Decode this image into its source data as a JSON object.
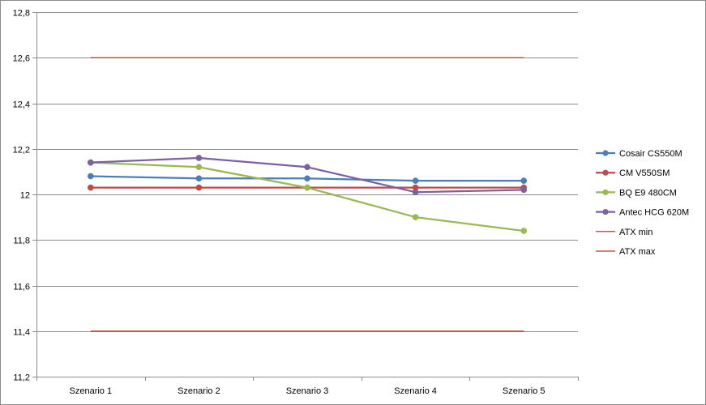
{
  "chart_data": {
    "type": "line",
    "title": "",
    "xlabel": "",
    "ylabel": "",
    "categories": [
      "Szenario 1",
      "Szenario 2",
      "Szenario 3",
      "Szenario 4",
      "Szenario 5"
    ],
    "ylim": [
      11.2,
      12.8
    ],
    "yticks": [
      "11,2",
      "11,4",
      "11,6",
      "11,8",
      "12",
      "12,2",
      "12,4",
      "12,6",
      "12,8"
    ],
    "ytick_values": [
      11.2,
      11.4,
      11.6,
      11.8,
      12.0,
      12.2,
      12.4,
      12.6,
      12.8
    ],
    "grid": true,
    "legend_position": "right",
    "series": [
      {
        "name": "Cosair CS550M",
        "color": "#4a7ebb",
        "marker": true,
        "values": [
          12.08,
          12.07,
          12.07,
          12.06,
          12.06
        ]
      },
      {
        "name": "CM V550SM",
        "color": "#be4b48",
        "marker": true,
        "values": [
          12.03,
          12.03,
          12.03,
          12.03,
          12.03
        ]
      },
      {
        "name": "BQ E9 480CM",
        "color": "#98b954",
        "marker": true,
        "values": [
          12.14,
          12.12,
          12.03,
          11.9,
          11.84
        ]
      },
      {
        "name": "Antec HCG 620M",
        "color": "#7d60a0",
        "marker": true,
        "values": [
          12.14,
          12.16,
          12.12,
          12.01,
          12.02
        ]
      },
      {
        "name": "ATX min",
        "color": "#c0392b",
        "marker": false,
        "values": [
          11.4,
          11.4,
          11.4,
          11.4,
          11.4
        ]
      },
      {
        "name": "ATX max",
        "color": "#c0392b",
        "marker": false,
        "values": [
          12.6,
          12.6,
          12.6,
          12.6,
          12.6
        ]
      }
    ]
  }
}
